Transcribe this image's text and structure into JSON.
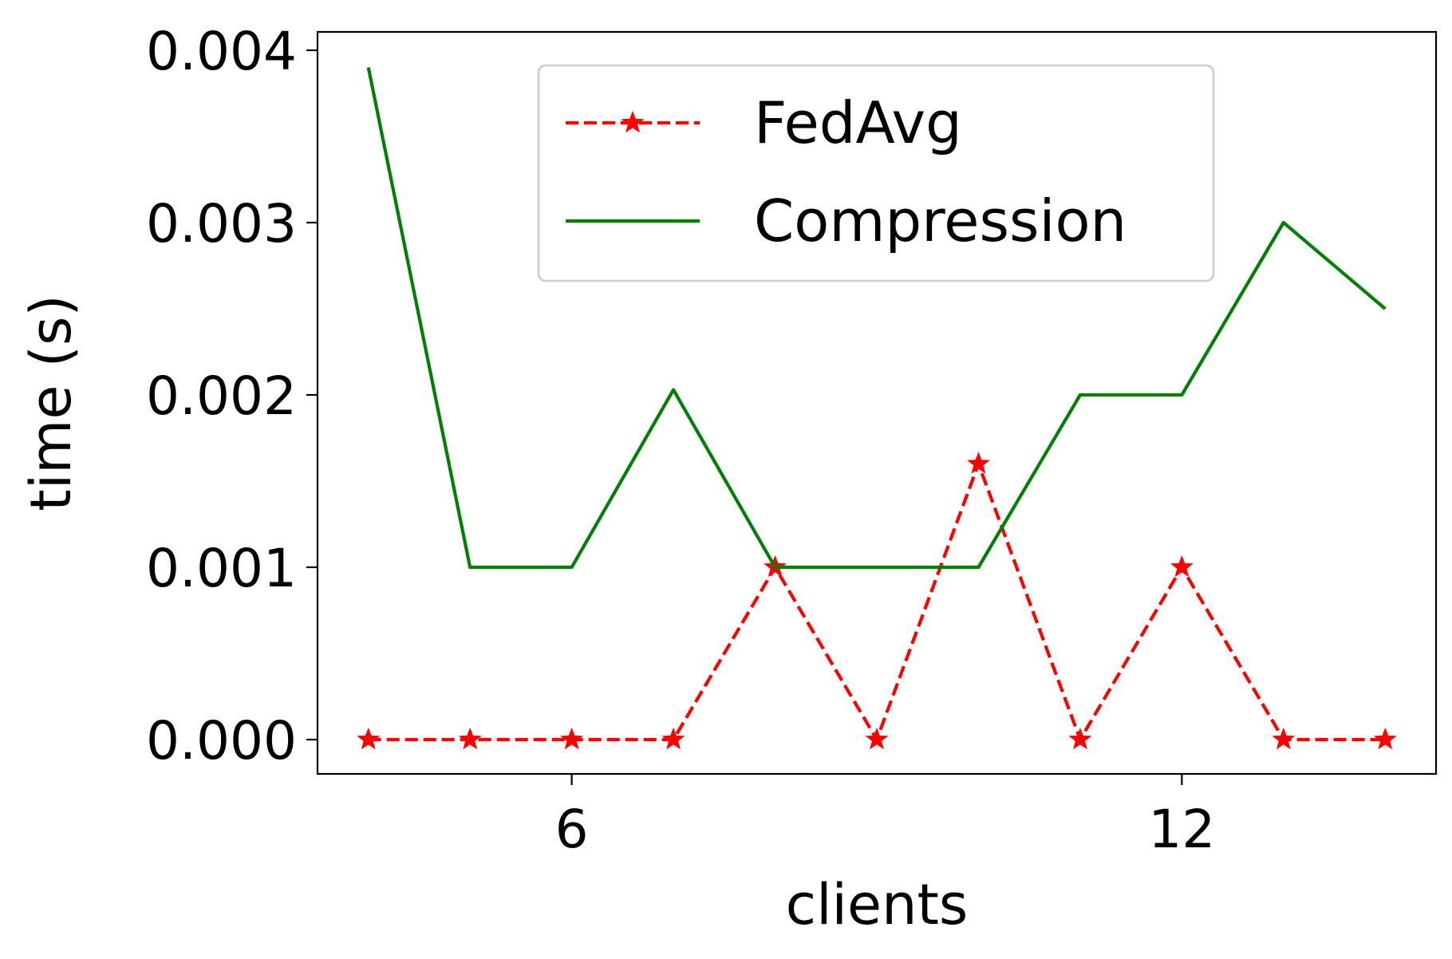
{
  "chart_data": {
    "type": "line",
    "xlabel": "clients",
    "ylabel": "time (s)",
    "xlim": [
      3.5,
      14.5
    ],
    "ylim": [
      0,
      0.004
    ],
    "x_ticks": [
      6,
      12
    ],
    "x_tick_labels": [
      "6",
      "12"
    ],
    "y_ticks": [
      0,
      0.001,
      0.002,
      0.003,
      0.004
    ],
    "y_tick_labels": [
      "0.000",
      "0.001",
      "0.002",
      "0.003",
      "0.004"
    ],
    "grid": false,
    "legend_position": "upper center",
    "x": [
      4,
      5,
      6,
      7,
      8,
      9,
      10,
      11,
      12,
      13,
      14
    ],
    "series": [
      {
        "name": "FedAvg",
        "color": "#ff0000",
        "line_style": "dashed",
        "marker": "star",
        "values": [
          0,
          0,
          0,
          0,
          0.001,
          0,
          0.0016,
          0,
          0.001,
          0,
          0
        ]
      },
      {
        "name": "Compression",
        "color": "#008000",
        "line_style": "solid",
        "marker": "none",
        "values": [
          0.0039,
          0.001,
          0.001,
          0.00203,
          0.001,
          0.001,
          0.001,
          0.002,
          0.002,
          0.003,
          0.0025
        ]
      }
    ]
  }
}
